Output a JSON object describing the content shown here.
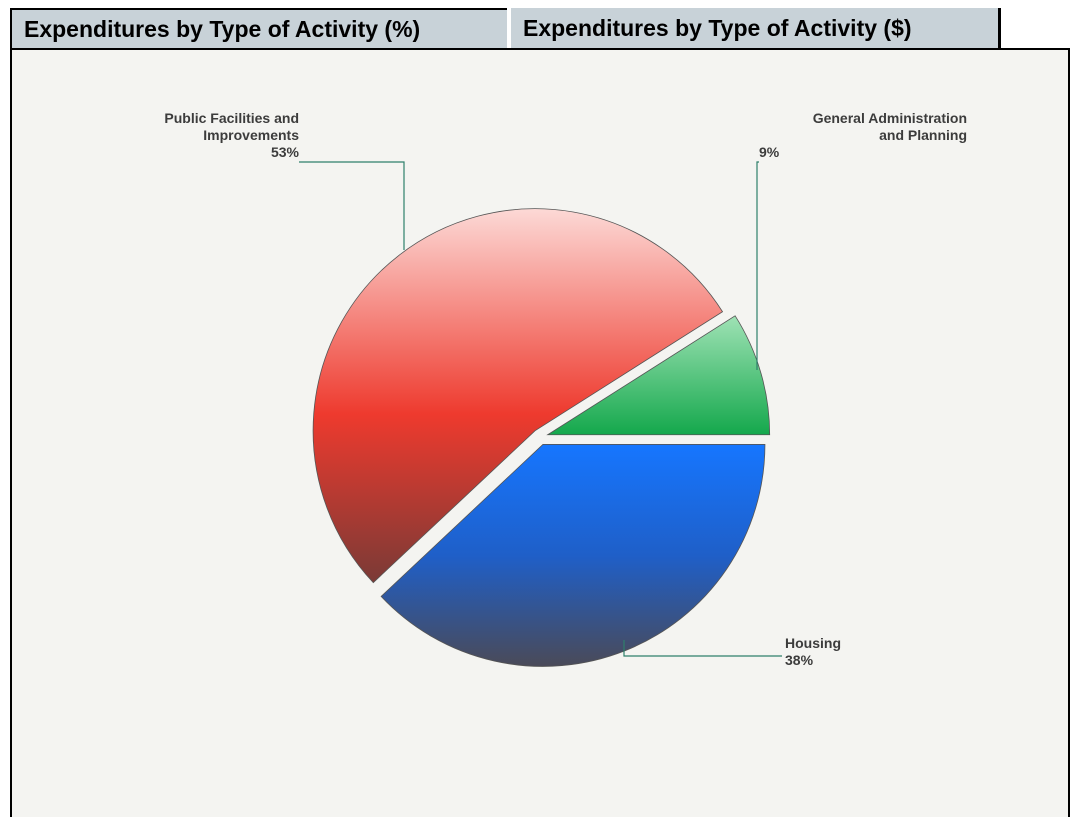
{
  "tabs": [
    {
      "label": "Expenditures by Type of Activity (%)",
      "active": true
    },
    {
      "label": "Expenditures by Type of Activity ($)",
      "active": false
    }
  ],
  "chart_data": {
    "type": "pie",
    "title": "",
    "slices": [
      {
        "label_lines": [
          "Public Facilities and",
          "Improvements"
        ],
        "value_label": "53%",
        "value": 53,
        "color": "#ee3a2e"
      },
      {
        "label_lines": [
          "General Administration",
          "and Planning"
        ],
        "value_label": "9%",
        "value": 9,
        "color": "#1fb35a"
      },
      {
        "label_lines": [
          "Housing"
        ],
        "value_label": "38%",
        "value": 38,
        "color": "#1c6fe6"
      }
    ],
    "exploded": true,
    "legend": "none"
  }
}
